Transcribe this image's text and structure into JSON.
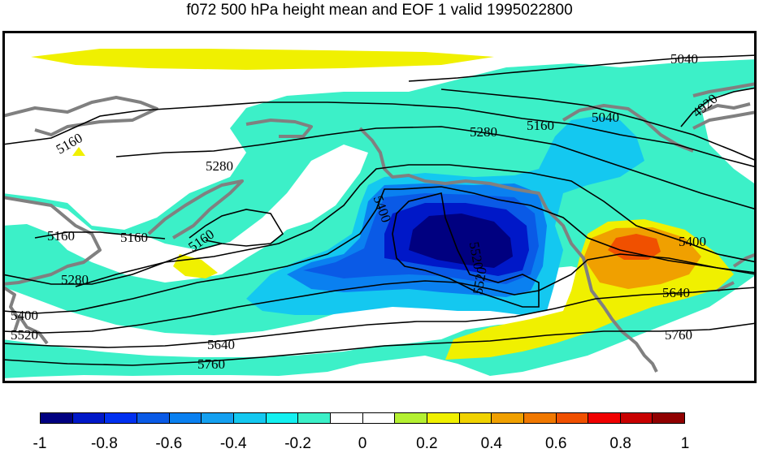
{
  "title": "f072 500 hPa height mean and EOF 1 valid 1995022800",
  "contour_labels": [
    "5040",
    "4920",
    "5160",
    "5040",
    "5280",
    "5160",
    "5280",
    "5160",
    "5160",
    "5160",
    "5400",
    "5400",
    "5520",
    "5520",
    "5280",
    "5400",
    "5520",
    "5640",
    "5640",
    "5760",
    "5760"
  ],
  "colorbar": {
    "colors": [
      "#000080",
      "#0018c8",
      "#0030f0",
      "#0a5ae6",
      "#0a80f0",
      "#14a0f0",
      "#14c8f0",
      "#14f0f0",
      "#3cf0c8",
      "#ffffff",
      "#ffffff",
      "#b4f032",
      "#f0f000",
      "#f0d200",
      "#f0a000",
      "#f07800",
      "#f05000",
      "#f00000",
      "#c80000",
      "#900000"
    ],
    "tick_labels": [
      "-1",
      "-0.8",
      "-0.6",
      "-0.4",
      "-0.2",
      "0",
      "0.2",
      "0.4",
      "0.6",
      "0.8",
      "1"
    ]
  },
  "colors": {
    "cyan": "#3cf0c8",
    "light_blue": "#14c8f0",
    "mid_blue": "#0a80f0",
    "blue": "#0a5ae6",
    "deep_blue": "#0018c8",
    "navy": "#000080",
    "yellow": "#f0f000",
    "gold": "#f0d200",
    "orange": "#f0a000",
    "red_orange": "#f05000",
    "coast": "#808080",
    "contour": "#000000"
  }
}
